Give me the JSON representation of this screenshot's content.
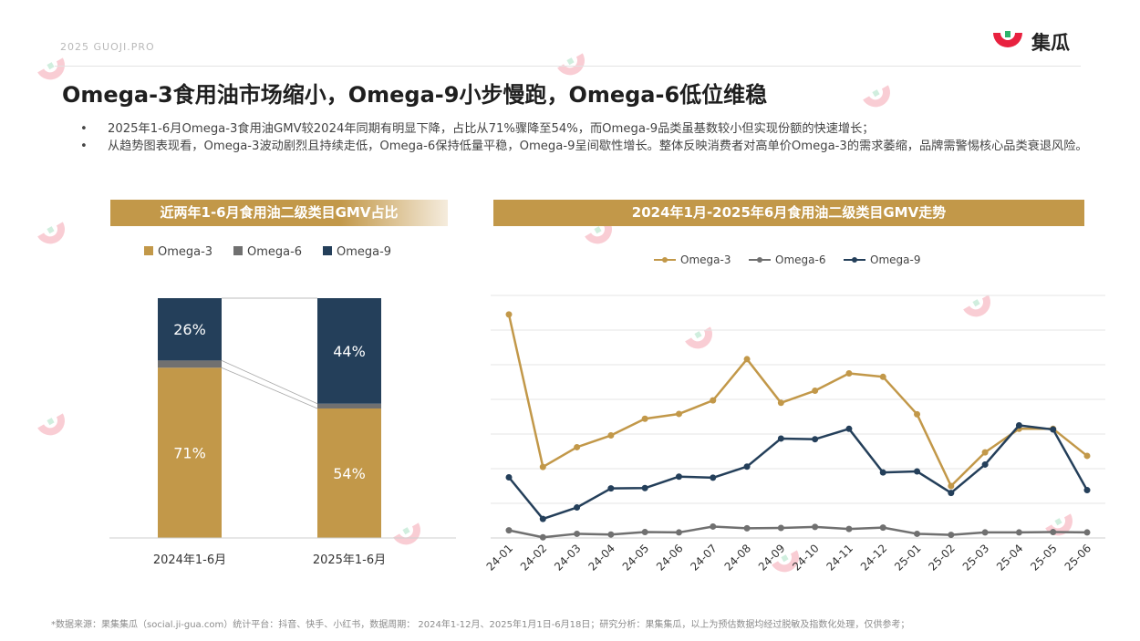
{
  "header": {
    "year_brand": "2025  GUOJI.PRO",
    "logo_text": "集瓜"
  },
  "title": "Omega-3食用油市场缩小，Omega-9小步慢跑，Omega-6低位维稳",
  "bullets": [
    "2025年1-6月Omega-3食用油GMV较2024年同期有明显下降，占比从71%骤降至54%，而Omega-9品类虽基数较小但实现份额的快速增长；",
    "从趋势图表现看，Omega-3波动剧烈且持续走低，Omega-6保持低量平稳，Omega-9呈间歇性增长。整体反映消费者对高单价Omega-3的需求萎缩，品牌需警惕核心品类衰退风险。"
  ],
  "bullet_marker": "•",
  "footnote": "*数据来源：果集集瓜（social.ji-gua.com）统计平台：抖音、快手、小红书，数据周期： 2024年1-12月、2025年1月1日-6月18日；研究分析：果集集瓜，以上为预估数据均经过脱敏及指数化处理，仅供参考；",
  "colors": {
    "omega3": "#c29849",
    "omega6": "#707070",
    "omega9": "#243f5a",
    "header_bar": "#c29849"
  },
  "chart_data": [
    {
      "type": "bar",
      "stacked": true,
      "normalized": true,
      "title": "近两年1-6月食用油二级类目GMV占比",
      "categories": [
        "2024年1-6月",
        "2025年1-6月"
      ],
      "series": [
        {
          "name": "Omega-3",
          "values": [
            71,
            54
          ],
          "labels": [
            "71%",
            "54%"
          ]
        },
        {
          "name": "Omega-6",
          "values": [
            3,
            2
          ],
          "labels": [
            "",
            ""
          ]
        },
        {
          "name": "Omega-9",
          "values": [
            26,
            44
          ],
          "labels": [
            "26%",
            "44%"
          ]
        }
      ],
      "ylim": [
        0,
        100
      ],
      "legend": "top",
      "grid": false,
      "connector_lines": true
    },
    {
      "type": "line",
      "title": "2024年1月-2025年6月食用油二级类目GMV走势",
      "x": [
        "24-01",
        "24-02",
        "24-03",
        "24-04",
        "24-05",
        "24-06",
        "24-07",
        "24-08",
        "24-09",
        "24-10",
        "24-11",
        "24-12",
        "25-01",
        "25-02",
        "25-03",
        "25-04",
        "25-05",
        "25-06"
      ],
      "series": [
        {
          "name": "Omega-3",
          "values": [
            645,
            205,
            262,
            296,
            344,
            358,
            397,
            516,
            390,
            425,
            475,
            465,
            357,
            150,
            247,
            315,
            315,
            237
          ]
        },
        {
          "name": "Omega-6",
          "values": [
            22,
            2,
            12,
            10,
            17,
            16,
            33,
            28,
            29,
            32,
            26,
            30,
            12,
            9,
            16,
            16,
            17,
            16
          ]
        },
        {
          "name": "Omega-9",
          "values": [
            175,
            55,
            88,
            143,
            144,
            177,
            174,
            206,
            287,
            285,
            315,
            189,
            192,
            130,
            212,
            325,
            313,
            138
          ]
        }
      ],
      "ylim": [
        0,
        700
      ],
      "y_tick_labels": false,
      "grid": true,
      "legend": "top"
    }
  ]
}
